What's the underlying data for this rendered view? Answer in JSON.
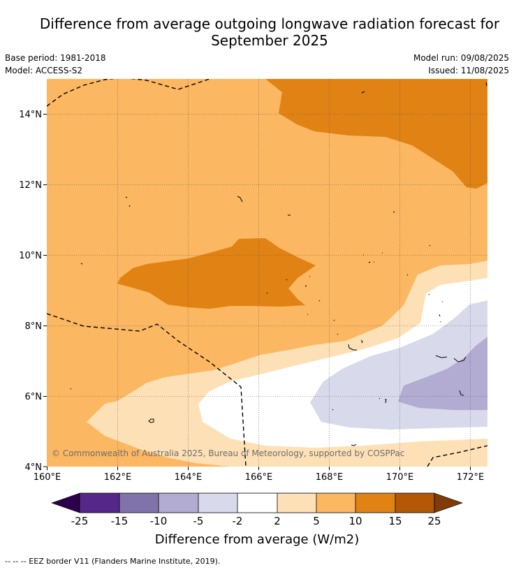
{
  "title_line1": "Difference from average outgoing longwave radiation forecast for",
  "title_line2": "September 2025",
  "meta_left": [
    "Base period: 1981-2018",
    "Model: ACCESS-S2"
  ],
  "meta_right": [
    "Model run: 09/08/2025",
    "Issued: 11/08/2025"
  ],
  "copyright": "© Commonwealth of Australia 2025, Bureau of Meteorology, supported by COSPPac",
  "lat_labels": [
    "4°N",
    "6°N",
    "8°N",
    "10°N",
    "12°N",
    "14°N"
  ],
  "lon_labels": [
    "160°E",
    "162°E",
    "164°E",
    "166°E",
    "168°E",
    "170°E",
    "172°E"
  ],
  "colorbar": {
    "title": "Difference from average (W/m2)",
    "tick_labels": [
      "-25",
      "-15",
      "-10",
      "-5",
      "-2",
      "2",
      "5",
      "10",
      "15",
      "25"
    ],
    "colors": [
      "#2d004b",
      "#542788",
      "#8073ac",
      "#b2abd2",
      "#d8daeb",
      "#ffffff",
      "#fee0b6",
      "#fbb761",
      "#e08214",
      "#b35806",
      "#7f3b08"
    ]
  },
  "legend_line": "-- -- -- EEZ border V11 (Flanders Marine Institute, 2019)."
}
